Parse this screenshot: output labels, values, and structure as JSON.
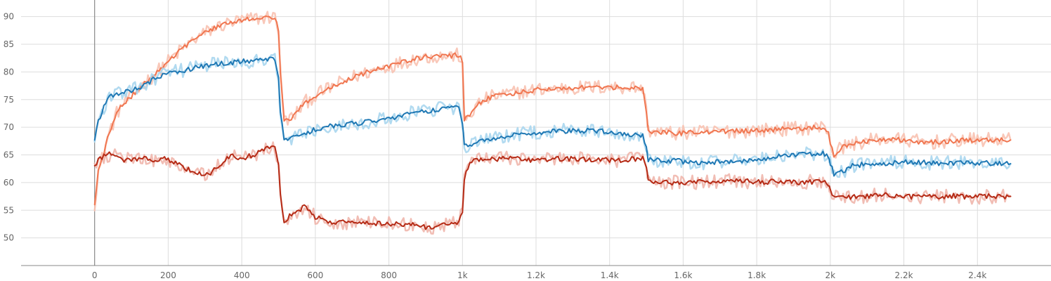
{
  "chart_data": {
    "type": "line",
    "title": "",
    "xlabel": "",
    "ylabel": "",
    "xlim": [
      -200,
      2600
    ],
    "ylim": [
      45,
      93
    ],
    "grid": true,
    "legend": "none",
    "x_ticks": [
      {
        "value": 0,
        "label": "0"
      },
      {
        "value": 200,
        "label": "200"
      },
      {
        "value": 400,
        "label": "400"
      },
      {
        "value": 600,
        "label": "600"
      },
      {
        "value": 800,
        "label": "800"
      },
      {
        "value": 1000,
        "label": "1k"
      },
      {
        "value": 1200,
        "label": "1.2k"
      },
      {
        "value": 1400,
        "label": "1.4k"
      },
      {
        "value": 1600,
        "label": "1.6k"
      },
      {
        "value": 1800,
        "label": "1.8k"
      },
      {
        "value": 2000,
        "label": "2k"
      },
      {
        "value": 2200,
        "label": "2.2k"
      },
      {
        "value": 2400,
        "label": "2.4k"
      }
    ],
    "y_ticks": [
      {
        "value": 50,
        "label": "50"
      },
      {
        "value": 55,
        "label": "55"
      },
      {
        "value": 60,
        "label": "60"
      },
      {
        "value": 65,
        "label": "65"
      },
      {
        "value": 70,
        "label": "70"
      },
      {
        "value": 75,
        "label": "75"
      },
      {
        "value": 80,
        "label": "80"
      },
      {
        "value": 85,
        "label": "85"
      },
      {
        "value": 90,
        "label": "90"
      }
    ],
    "series": [
      {
        "color": "#f07650",
        "raw_color": "#f8c2b1",
        "points": [
          [
            0,
            56.2
          ],
          [
            10,
            62.0
          ],
          [
            25,
            65.5
          ],
          [
            40,
            69.0
          ],
          [
            60,
            72.5
          ],
          [
            80,
            74.5
          ],
          [
            100,
            75.6
          ],
          [
            130,
            77.6
          ],
          [
            160,
            79.4
          ],
          [
            190,
            81.3
          ],
          [
            220,
            83.1
          ],
          [
            250,
            84.8
          ],
          [
            280,
            86.3
          ],
          [
            310,
            87.4
          ],
          [
            340,
            88.3
          ],
          [
            370,
            88.9
          ],
          [
            400,
            89.3
          ],
          [
            430,
            89.6
          ],
          [
            460,
            89.8
          ],
          [
            490,
            90.0
          ],
          [
            500,
            87.5
          ],
          [
            505,
            80.0
          ],
          [
            515,
            71.3
          ],
          [
            540,
            71.8
          ],
          [
            570,
            74.4
          ],
          [
            600,
            75.7
          ],
          [
            630,
            76.8
          ],
          [
            660,
            77.8
          ],
          [
            690,
            78.7
          ],
          [
            720,
            79.5
          ],
          [
            750,
            80.1
          ],
          [
            780,
            80.7
          ],
          [
            810,
            81.2
          ],
          [
            840,
            81.8
          ],
          [
            870,
            82.4
          ],
          [
            900,
            82.7
          ],
          [
            930,
            82.8
          ],
          [
            960,
            82.9
          ],
          [
            990,
            83.0
          ],
          [
            1000,
            82.0
          ],
          [
            1005,
            71.2
          ],
          [
            1020,
            72.2
          ],
          [
            1045,
            74.3
          ],
          [
            1070,
            75.3
          ],
          [
            1100,
            75.8
          ],
          [
            1140,
            76.2
          ],
          [
            1180,
            76.6
          ],
          [
            1220,
            76.9
          ],
          [
            1260,
            77.0
          ],
          [
            1300,
            77.1
          ],
          [
            1340,
            77.2
          ],
          [
            1380,
            77.3
          ],
          [
            1420,
            77.2
          ],
          [
            1460,
            77.3
          ],
          [
            1490,
            77.0
          ],
          [
            1500,
            73.0
          ],
          [
            1505,
            69.4
          ],
          [
            1540,
            69.1
          ],
          [
            1580,
            68.9
          ],
          [
            1620,
            69.1
          ],
          [
            1660,
            69.1
          ],
          [
            1700,
            69.3
          ],
          [
            1740,
            69.3
          ],
          [
            1780,
            69.4
          ],
          [
            1820,
            69.5
          ],
          [
            1860,
            69.6
          ],
          [
            1900,
            69.8
          ],
          [
            1940,
            69.9
          ],
          [
            1980,
            70.0
          ],
          [
            1995,
            69.5
          ],
          [
            2000,
            67.0
          ],
          [
            2010,
            65.0
          ],
          [
            2030,
            66.4
          ],
          [
            2060,
            67.0
          ],
          [
            2100,
            67.5
          ],
          [
            2140,
            67.9
          ],
          [
            2180,
            67.8
          ],
          [
            2220,
            67.6
          ],
          [
            2260,
            67.2
          ],
          [
            2300,
            67.4
          ],
          [
            2340,
            67.6
          ],
          [
            2380,
            67.7
          ],
          [
            2420,
            67.7
          ],
          [
            2460,
            67.8
          ],
          [
            2490,
            67.7
          ]
        ]
      },
      {
        "color": "#1f78b4",
        "raw_color": "#a9d6ee",
        "points": [
          [
            0,
            67.6
          ],
          [
            10,
            71.0
          ],
          [
            25,
            73.5
          ],
          [
            40,
            75.5
          ],
          [
            60,
            76.0
          ],
          [
            80,
            76.4
          ],
          [
            100,
            76.7
          ],
          [
            130,
            77.3
          ],
          [
            160,
            78.6
          ],
          [
            190,
            79.6
          ],
          [
            220,
            80.1
          ],
          [
            250,
            80.4
          ],
          [
            280,
            80.9
          ],
          [
            310,
            81.3
          ],
          [
            340,
            81.5
          ],
          [
            370,
            81.6
          ],
          [
            400,
            81.9
          ],
          [
            430,
            82.0
          ],
          [
            460,
            82.1
          ],
          [
            490,
            82.3
          ],
          [
            500,
            78.5
          ],
          [
            505,
            73.0
          ],
          [
            515,
            67.5
          ],
          [
            540,
            68.3
          ],
          [
            570,
            68.7
          ],
          [
            600,
            69.6
          ],
          [
            630,
            70.1
          ],
          [
            660,
            70.4
          ],
          [
            690,
            70.6
          ],
          [
            720,
            70.8
          ],
          [
            750,
            71.0
          ],
          [
            780,
            71.3
          ],
          [
            810,
            71.7
          ],
          [
            840,
            72.3
          ],
          [
            870,
            72.6
          ],
          [
            900,
            72.9
          ],
          [
            930,
            73.2
          ],
          [
            960,
            73.5
          ],
          [
            990,
            73.6
          ],
          [
            1000,
            71.0
          ],
          [
            1005,
            66.5
          ],
          [
            1020,
            66.6
          ],
          [
            1045,
            67.2
          ],
          [
            1070,
            67.8
          ],
          [
            1100,
            68.2
          ],
          [
            1140,
            68.6
          ],
          [
            1180,
            68.9
          ],
          [
            1220,
            69.1
          ],
          [
            1260,
            69.3
          ],
          [
            1300,
            69.4
          ],
          [
            1340,
            69.4
          ],
          [
            1380,
            69.3
          ],
          [
            1420,
            68.9
          ],
          [
            1460,
            68.6
          ],
          [
            1490,
            68.5
          ],
          [
            1500,
            66.5
          ],
          [
            1505,
            64.1
          ],
          [
            1540,
            64.0
          ],
          [
            1580,
            63.9
          ],
          [
            1620,
            63.7
          ],
          [
            1660,
            63.6
          ],
          [
            1700,
            63.7
          ],
          [
            1740,
            63.9
          ],
          [
            1780,
            64.1
          ],
          [
            1820,
            64.4
          ],
          [
            1860,
            64.7
          ],
          [
            1900,
            65.0
          ],
          [
            1940,
            65.2
          ],
          [
            1980,
            65.3
          ],
          [
            1995,
            64.8
          ],
          [
            2000,
            63.5
          ],
          [
            2010,
            61.4
          ],
          [
            2030,
            61.9
          ],
          [
            2060,
            63.0
          ],
          [
            2100,
            63.4
          ],
          [
            2140,
            63.5
          ],
          [
            2180,
            63.6
          ],
          [
            2220,
            63.7
          ],
          [
            2260,
            63.6
          ],
          [
            2300,
            63.5
          ],
          [
            2340,
            63.6
          ],
          [
            2380,
            63.6
          ],
          [
            2420,
            63.5
          ],
          [
            2460,
            63.4
          ],
          [
            2490,
            63.4
          ]
        ]
      },
      {
        "color": "#b52b16",
        "raw_color": "#efb6ac",
        "points": [
          [
            0,
            62.7
          ],
          [
            10,
            64.0
          ],
          [
            25,
            64.7
          ],
          [
            40,
            65.1
          ],
          [
            60,
            64.6
          ],
          [
            80,
            64.0
          ],
          [
            100,
            64.3
          ],
          [
            130,
            64.4
          ],
          [
            160,
            63.8
          ],
          [
            190,
            64.5
          ],
          [
            220,
            63.6
          ],
          [
            250,
            62.5
          ],
          [
            280,
            61.6
          ],
          [
            310,
            61.4
          ],
          [
            340,
            63.2
          ],
          [
            370,
            64.8
          ],
          [
            400,
            64.4
          ],
          [
            430,
            65.0
          ],
          [
            460,
            65.9
          ],
          [
            490,
            66.6
          ],
          [
            500,
            63.0
          ],
          [
            505,
            58.0
          ],
          [
            515,
            53.0
          ],
          [
            540,
            54.5
          ],
          [
            570,
            55.6
          ],
          [
            600,
            53.8
          ],
          [
            630,
            53.0
          ],
          [
            660,
            52.8
          ],
          [
            690,
            52.8
          ],
          [
            720,
            52.7
          ],
          [
            750,
            52.6
          ],
          [
            780,
            52.7
          ],
          [
            810,
            52.5
          ],
          [
            840,
            52.4
          ],
          [
            870,
            52.6
          ],
          [
            900,
            51.8
          ],
          [
            930,
            52.1
          ],
          [
            960,
            52.7
          ],
          [
            990,
            52.6
          ],
          [
            1000,
            55.0
          ],
          [
            1005,
            60.5
          ],
          [
            1020,
            64.0
          ],
          [
            1045,
            64.1
          ],
          [
            1070,
            64.3
          ],
          [
            1100,
            64.3
          ],
          [
            1140,
            64.3
          ],
          [
            1180,
            64.1
          ],
          [
            1220,
            64.2
          ],
          [
            1260,
            64.3
          ],
          [
            1300,
            64.3
          ],
          [
            1340,
            64.2
          ],
          [
            1380,
            64.1
          ],
          [
            1420,
            64.0
          ],
          [
            1460,
            64.2
          ],
          [
            1490,
            64.3
          ],
          [
            1500,
            62.5
          ],
          [
            1505,
            60.3
          ],
          [
            1540,
            60.1
          ],
          [
            1580,
            60.0
          ],
          [
            1620,
            60.1
          ],
          [
            1660,
            60.1
          ],
          [
            1700,
            60.2
          ],
          [
            1740,
            60.3
          ],
          [
            1780,
            60.2
          ],
          [
            1820,
            60.1
          ],
          [
            1860,
            60.2
          ],
          [
            1900,
            60.0
          ],
          [
            1940,
            60.1
          ],
          [
            1980,
            60.2
          ],
          [
            1995,
            59.7
          ],
          [
            2000,
            58.5
          ],
          [
            2010,
            57.6
          ],
          [
            2030,
            57.5
          ],
          [
            2060,
            57.4
          ],
          [
            2100,
            57.6
          ],
          [
            2140,
            57.8
          ],
          [
            2180,
            57.5
          ],
          [
            2220,
            57.4
          ],
          [
            2260,
            57.6
          ],
          [
            2300,
            57.5
          ],
          [
            2340,
            57.6
          ],
          [
            2380,
            57.4
          ],
          [
            2420,
            57.5
          ],
          [
            2460,
            57.5
          ],
          [
            2490,
            57.5
          ]
        ]
      }
    ]
  }
}
